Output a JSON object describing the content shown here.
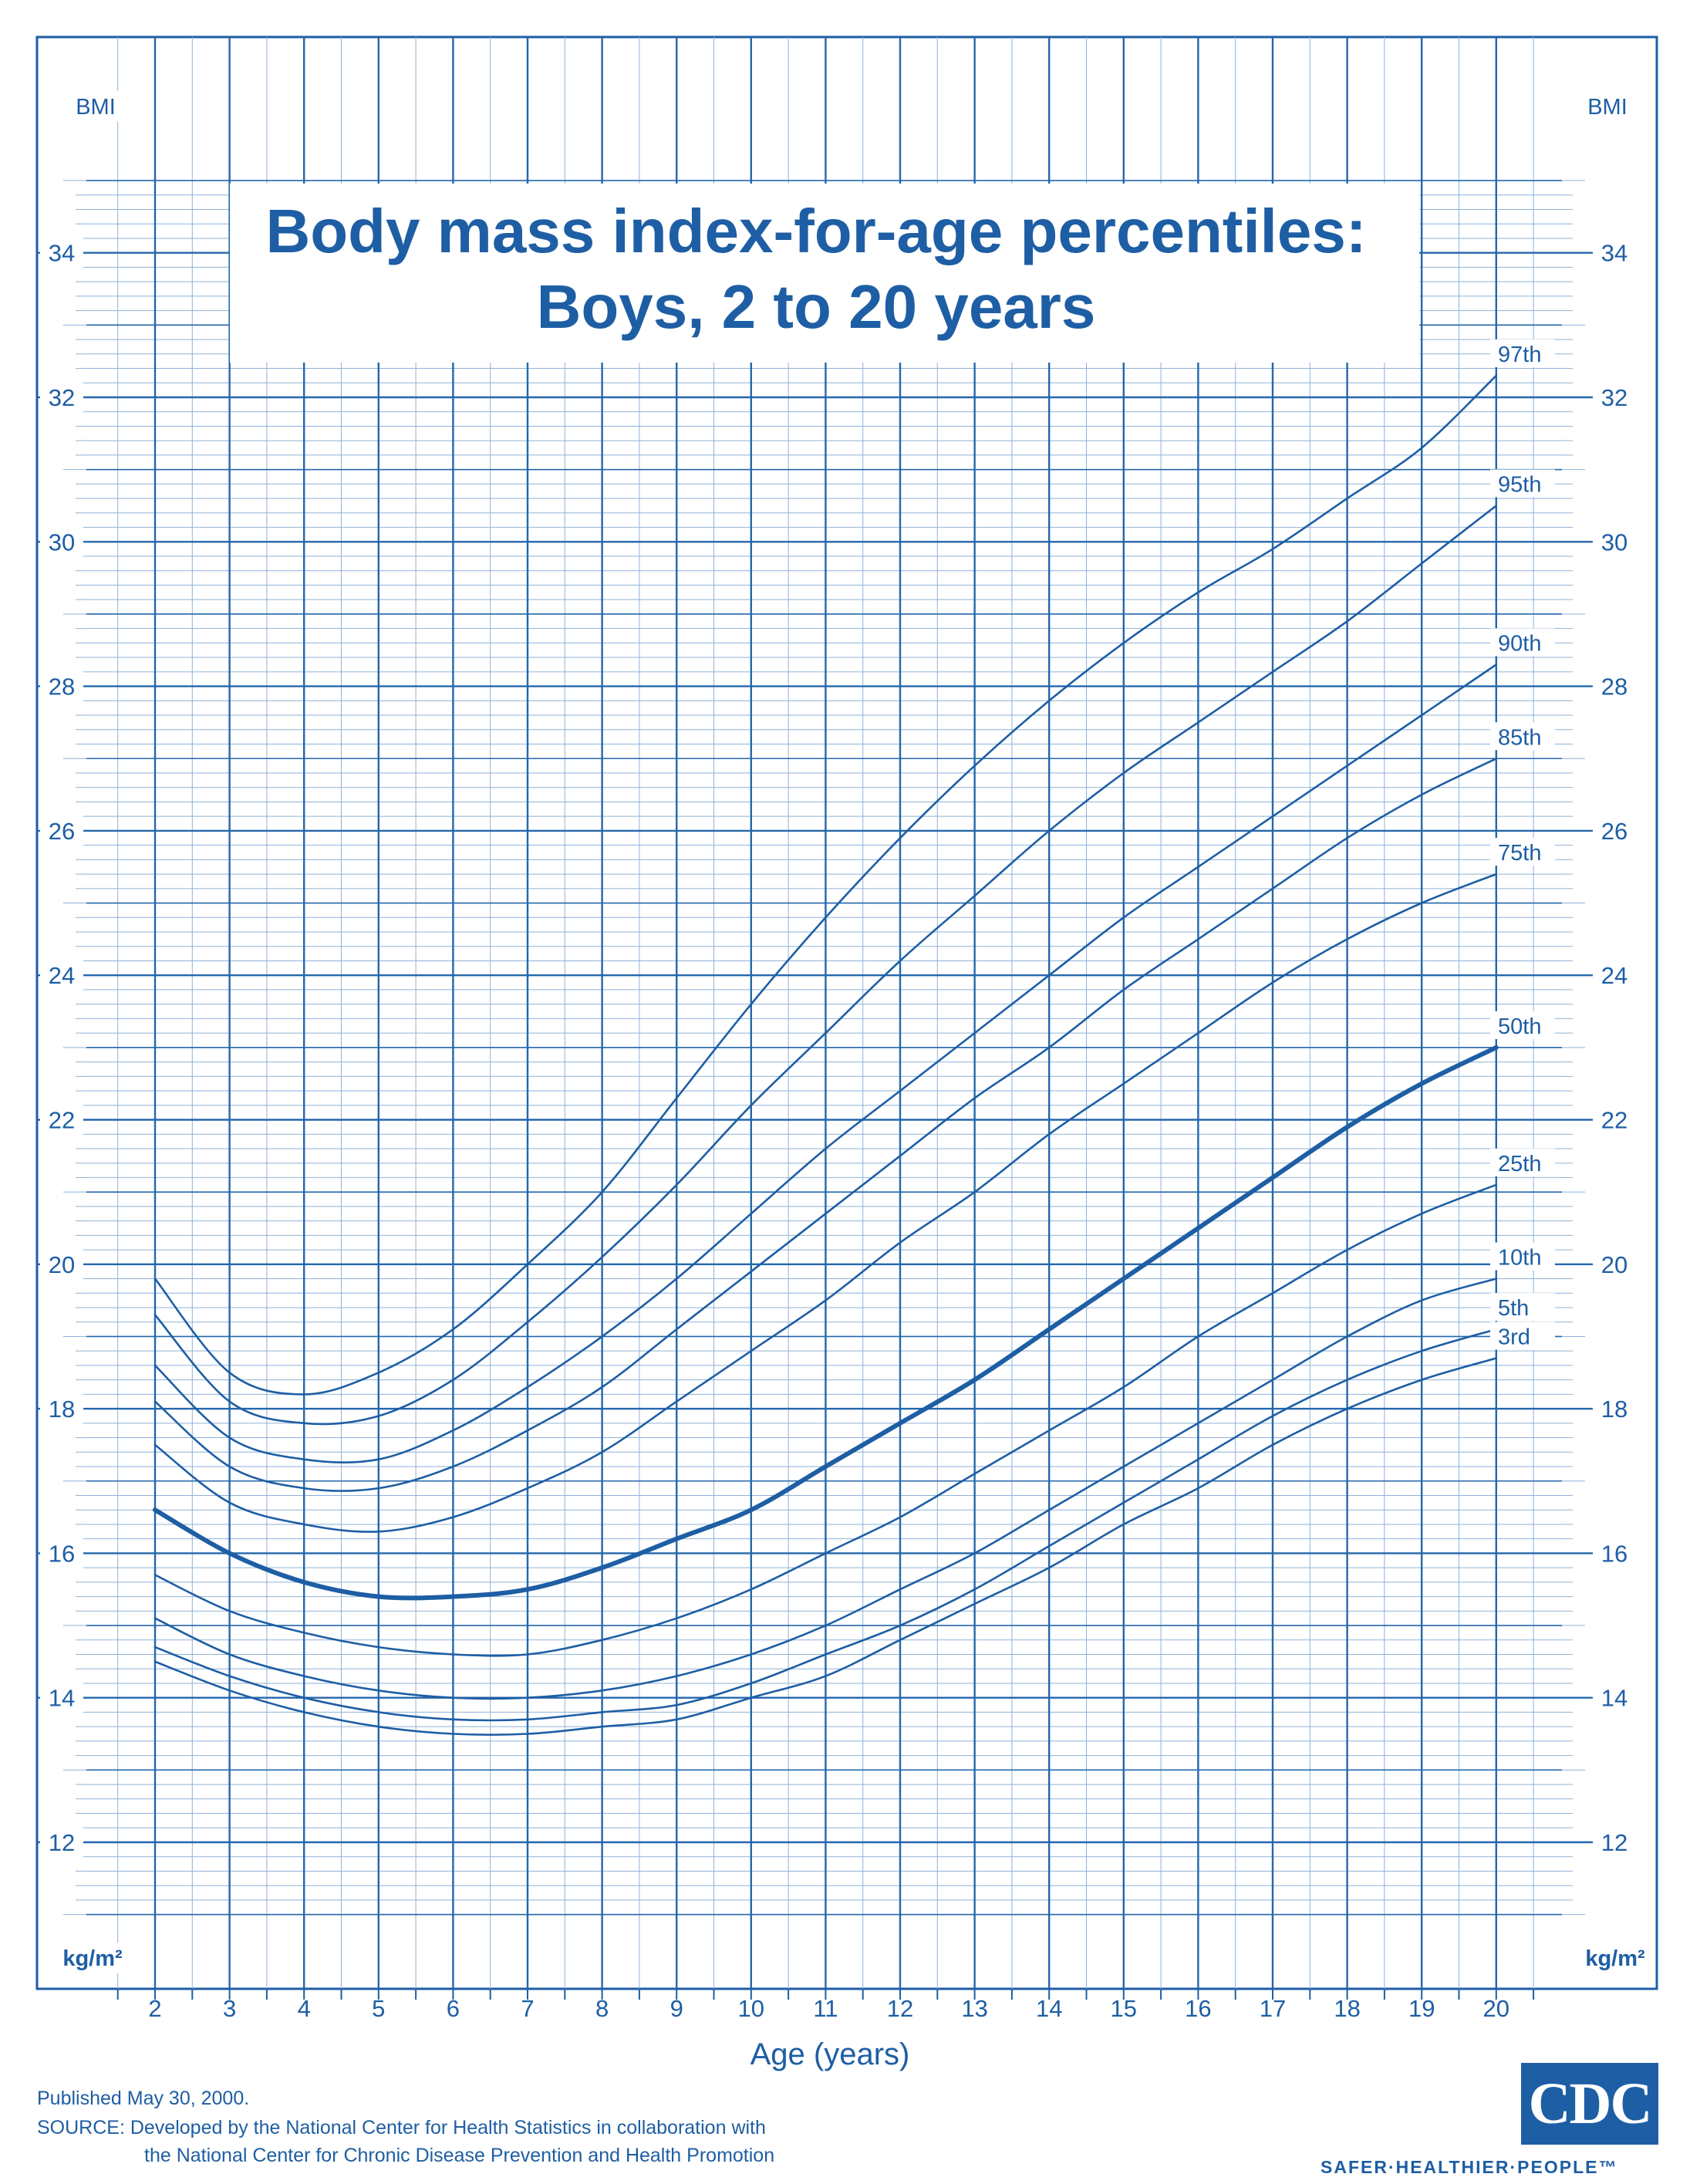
{
  "chart_data": {
    "type": "line",
    "title": "Body mass index-for-age percentiles:",
    "subtitle": "Boys, 2 to 20 years",
    "xlabel": "Age (years)",
    "ylabel": "BMI",
    "yunit": "kg/m²",
    "xlim": [
      2,
      20
    ],
    "ylim": [
      11,
      35
    ],
    "xticks": [
      2,
      3,
      4,
      5,
      6,
      7,
      8,
      9,
      10,
      11,
      12,
      13,
      14,
      15,
      16,
      17,
      18,
      19,
      20
    ],
    "yticks": [
      12,
      14,
      16,
      18,
      20,
      22,
      24,
      26,
      28,
      30,
      32,
      34
    ],
    "grid": true,
    "x": [
      2,
      3,
      4,
      5,
      6,
      7,
      8,
      9,
      10,
      11,
      12,
      13,
      14,
      15,
      16,
      17,
      18,
      19,
      20
    ],
    "series": [
      {
        "name": "97th",
        "label": "97th",
        "values": [
          19.8,
          18.5,
          18.2,
          18.5,
          19.1,
          20.0,
          21.0,
          22.3,
          23.6,
          24.8,
          25.9,
          26.9,
          27.8,
          28.6,
          29.3,
          29.9,
          30.6,
          31.3,
          32.3
        ]
      },
      {
        "name": "95th",
        "label": "95th",
        "values": [
          19.3,
          18.1,
          17.8,
          17.9,
          18.4,
          19.2,
          20.1,
          21.1,
          22.2,
          23.2,
          24.2,
          25.1,
          26.0,
          26.8,
          27.5,
          28.2,
          28.9,
          29.7,
          30.5
        ]
      },
      {
        "name": "90th",
        "label": "90th",
        "values": [
          18.6,
          17.6,
          17.3,
          17.3,
          17.7,
          18.3,
          19.0,
          19.8,
          20.7,
          21.6,
          22.4,
          23.2,
          24.0,
          24.8,
          25.5,
          26.2,
          26.9,
          27.6,
          28.3
        ]
      },
      {
        "name": "85th",
        "label": "85th",
        "values": [
          18.1,
          17.2,
          16.9,
          16.9,
          17.2,
          17.7,
          18.3,
          19.1,
          19.9,
          20.7,
          21.5,
          22.3,
          23.0,
          23.8,
          24.5,
          25.2,
          25.9,
          26.5,
          27.0
        ]
      },
      {
        "name": "75th",
        "label": "75th",
        "values": [
          17.5,
          16.7,
          16.4,
          16.3,
          16.5,
          16.9,
          17.4,
          18.1,
          18.8,
          19.5,
          20.3,
          21.0,
          21.8,
          22.5,
          23.2,
          23.9,
          24.5,
          25.0,
          25.4
        ]
      },
      {
        "name": "50th",
        "label": "50th",
        "values": [
          16.6,
          16.0,
          15.6,
          15.4,
          15.4,
          15.5,
          15.8,
          16.2,
          16.6,
          17.2,
          17.8,
          18.4,
          19.1,
          19.8,
          20.5,
          21.2,
          21.9,
          22.5,
          23.0
        ]
      },
      {
        "name": "25th",
        "label": "25th",
        "values": [
          15.7,
          15.2,
          14.9,
          14.7,
          14.6,
          14.6,
          14.8,
          15.1,
          15.5,
          16.0,
          16.5,
          17.1,
          17.7,
          18.3,
          19.0,
          19.6,
          20.2,
          20.7,
          21.1
        ]
      },
      {
        "name": "10th",
        "label": "10th",
        "values": [
          15.1,
          14.6,
          14.3,
          14.1,
          14.0,
          14.0,
          14.1,
          14.3,
          14.6,
          15.0,
          15.5,
          16.0,
          16.6,
          17.2,
          17.8,
          18.4,
          19.0,
          19.5,
          19.8
        ]
      },
      {
        "name": "5th",
        "label": "5th",
        "values": [
          14.7,
          14.3,
          14.0,
          13.8,
          13.7,
          13.7,
          13.8,
          13.9,
          14.2,
          14.6,
          15.0,
          15.5,
          16.1,
          16.7,
          17.3,
          17.9,
          18.4,
          18.8,
          19.1
        ]
      },
      {
        "name": "3rd",
        "label": "3rd",
        "values": [
          14.5,
          14.1,
          13.8,
          13.6,
          13.5,
          13.5,
          13.6,
          13.7,
          14.0,
          14.3,
          14.8,
          15.3,
          15.8,
          16.4,
          16.9,
          17.5,
          18.0,
          18.4,
          18.7
        ]
      }
    ],
    "bold_series": "50th"
  },
  "footer": {
    "published": "Published May 30, 2000.",
    "source_line1": "SOURCE: Developed by the National Center for Health Statistics in collaboration with",
    "source_line2": "the National Center for Chronic Disease Prevention and Health Promotion"
  },
  "logo": {
    "text": "CDC",
    "slogan": "SAFER·HEALTHIER·PEOPLE™"
  },
  "colors": {
    "ink": "#1e5ea4",
    "grid_major": "#2467ac",
    "grid_minor": "#8fb2d8",
    "background": "#ffffff"
  }
}
